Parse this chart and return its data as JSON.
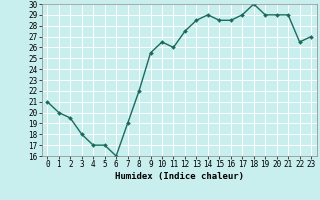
{
  "x": [
    0,
    1,
    2,
    3,
    4,
    5,
    6,
    7,
    8,
    9,
    10,
    11,
    12,
    13,
    14,
    15,
    16,
    17,
    18,
    19,
    20,
    21,
    22,
    23
  ],
  "y": [
    21,
    20,
    19.5,
    18,
    17,
    17,
    16,
    19,
    22,
    25.5,
    26.5,
    26,
    27.5,
    28.5,
    29,
    28.5,
    28.5,
    29,
    30,
    29,
    29,
    29,
    26.5,
    27
  ],
  "line_color": "#1a6b5e",
  "marker": "D",
  "marker_size": 2.0,
  "bg_color": "#c8eeee",
  "grid_color": "#ffffff",
  "xlabel": "Humidex (Indice chaleur)",
  "xlim": [
    -0.5,
    23.5
  ],
  "ylim": [
    16,
    30
  ],
  "yticks": [
    16,
    17,
    18,
    19,
    20,
    21,
    22,
    23,
    24,
    25,
    26,
    27,
    28,
    29,
    30
  ],
  "xticks": [
    0,
    1,
    2,
    3,
    4,
    5,
    6,
    7,
    8,
    9,
    10,
    11,
    12,
    13,
    14,
    15,
    16,
    17,
    18,
    19,
    20,
    21,
    22,
    23
  ],
  "tick_fontsize": 5.5,
  "xlabel_fontsize": 6.5,
  "linewidth": 1.0
}
